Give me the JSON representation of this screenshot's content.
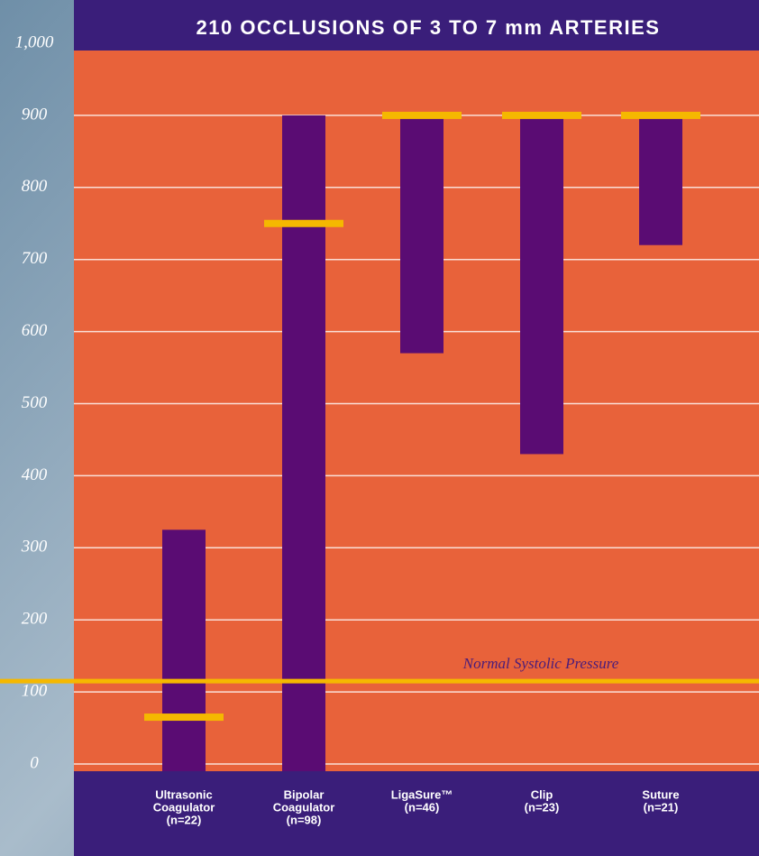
{
  "chart_data": {
    "type": "range_bar",
    "title": "210 OCCLUSIONS OF 3 TO 7 mm ARTERIES",
    "categories": [
      [
        "Ultrasonic",
        "Coagulator",
        "(n=22)"
      ],
      [
        "Bipolar",
        "Coagulator",
        "(n=98)"
      ],
      [
        "LigaSure™",
        "(n=46)"
      ],
      [
        "Clip",
        "(n=23)"
      ],
      [
        "Suture",
        "(n=21)"
      ]
    ],
    "low": [
      0,
      0,
      570,
      430,
      720
    ],
    "high": [
      325,
      900,
      900,
      900,
      900
    ],
    "median": [
      65,
      750,
      900,
      900,
      900
    ],
    "bar_color": "#5a0c73",
    "median_color": "#f5b800",
    "reference_line": {
      "value": 115,
      "label": "Normal Systolic Pressure",
      "color": "#f5b800"
    },
    "ylim": [
      0,
      1000
    ],
    "yticks": [
      0,
      100,
      200,
      300,
      400,
      500,
      600,
      700,
      800,
      900,
      {
        "value": 1000,
        "label": "1,000"
      }
    ],
    "grid": true
  }
}
